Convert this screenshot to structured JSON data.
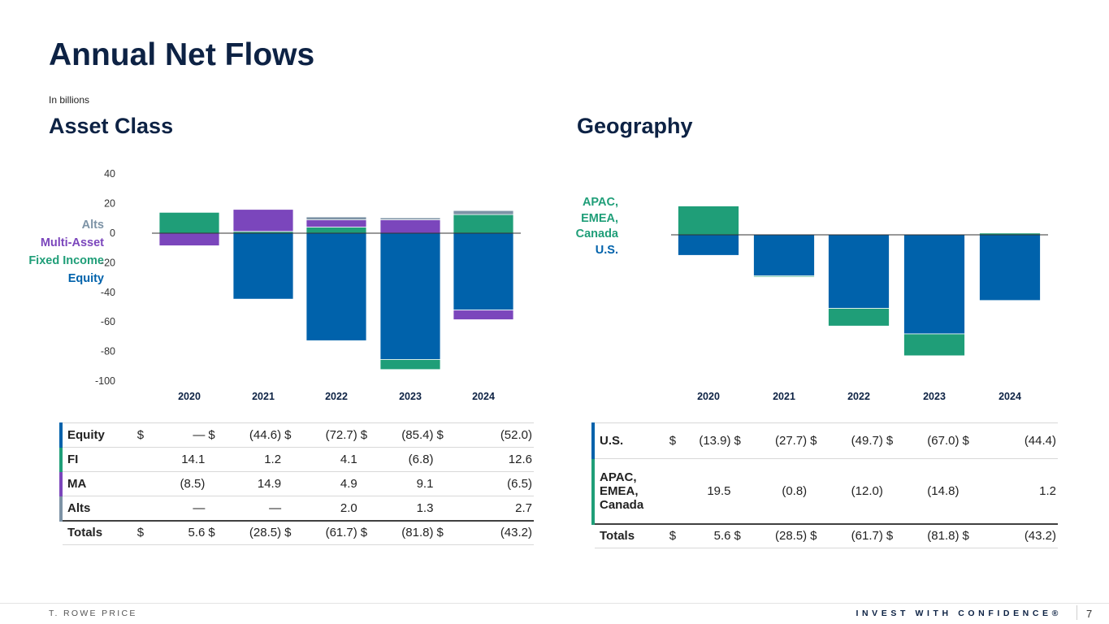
{
  "header": {
    "title": "Annual Net Flows",
    "subtitle": "In billions"
  },
  "sections": {
    "asset_class": "Asset Class",
    "geography": "Geography"
  },
  "colors": {
    "equity": "#0062ab",
    "fixed_income": "#1f9e78",
    "multi_asset": "#7b46bc",
    "alts": "#7d93a6",
    "us": "#0062ab",
    "apac": "#1f9e78",
    "navy": "#0d2244"
  },
  "legend_asset": [
    "Alts",
    "Multi-Asset",
    "Fixed Income",
    "Equity"
  ],
  "legend_geo": {
    "apac_lines": [
      "APAC,",
      "EMEA,",
      "Canada"
    ],
    "us": "U.S."
  },
  "chart_data": [
    {
      "type": "bar",
      "stacked": true,
      "title": "Asset Class",
      "categories": [
        "2020",
        "2021",
        "2022",
        "2023",
        "2024"
      ],
      "y_ticks": [
        "40",
        "20",
        "0",
        "-20",
        "-40",
        "-60",
        "-80",
        "-100"
      ],
      "ylim": [
        -100,
        40
      ],
      "series": [
        {
          "name": "Equity",
          "values": [
            0,
            -44.6,
            -72.7,
            -85.4,
            -52.0
          ]
        },
        {
          "name": "Fixed Income",
          "values": [
            14.1,
            1.2,
            4.1,
            -6.8,
            12.6
          ]
        },
        {
          "name": "Multi-Asset",
          "values": [
            -8.5,
            14.9,
            4.9,
            9.1,
            -6.5
          ]
        },
        {
          "name": "Alts",
          "values": [
            0,
            0,
            2.0,
            1.3,
            2.7
          ]
        }
      ]
    },
    {
      "type": "bar",
      "stacked": true,
      "title": "Geography",
      "categories": [
        "2020",
        "2021",
        "2022",
        "2023",
        "2024"
      ],
      "ylim": [
        -100,
        40
      ],
      "series": [
        {
          "name": "U.S.",
          "values": [
            -13.9,
            -27.7,
            -49.7,
            -67.0,
            -44.4
          ]
        },
        {
          "name": "APAC, EMEA, Canada",
          "values": [
            19.5,
            -0.8,
            -12.0,
            -14.8,
            1.2
          ]
        }
      ]
    }
  ],
  "table_asset": {
    "rows": [
      {
        "label": "Equity",
        "cells": [
          [
            "$",
            "—"
          ],
          [
            "$",
            "(44.6)"
          ],
          [
            "$",
            "(72.7)"
          ],
          [
            "$",
            "(85.4)"
          ],
          [
            "$",
            "(52.0)"
          ]
        ]
      },
      {
        "label": "FI",
        "cells": [
          [
            "",
            "14.1"
          ],
          [
            "",
            "1.2"
          ],
          [
            "",
            "4.1"
          ],
          [
            "",
            "(6.8)"
          ],
          [
            "",
            "12.6"
          ]
        ]
      },
      {
        "label": "MA",
        "cells": [
          [
            "",
            "(8.5)"
          ],
          [
            "",
            "14.9"
          ],
          [
            "",
            "4.9"
          ],
          [
            "",
            "9.1"
          ],
          [
            "",
            "(6.5)"
          ]
        ]
      },
      {
        "label": "Alts",
        "cells": [
          [
            "",
            "—"
          ],
          [
            "",
            "—"
          ],
          [
            "",
            "2.0"
          ],
          [
            "",
            "1.3"
          ],
          [
            "",
            "2.7"
          ]
        ]
      }
    ],
    "totals": {
      "label": "Totals",
      "cells": [
        [
          "$",
          "5.6"
        ],
        [
          "$",
          "(28.5)"
        ],
        [
          "$",
          "(61.7)"
        ],
        [
          "$",
          "(81.8)"
        ],
        [
          "$",
          "(43.2)"
        ]
      ]
    }
  },
  "table_geo": {
    "rows": [
      {
        "label": "U.S.",
        "cells": [
          [
            "$",
            "(13.9)"
          ],
          [
            "$",
            "(27.7)"
          ],
          [
            "$",
            "(49.7)"
          ],
          [
            "$",
            "(67.0)"
          ],
          [
            "$",
            "(44.4)"
          ]
        ]
      },
      {
        "label_lines": [
          "APAC,",
          "EMEA,",
          "Canada"
        ],
        "cells": [
          [
            "",
            "19.5"
          ],
          [
            "",
            "(0.8)"
          ],
          [
            "",
            "(12.0)"
          ],
          [
            "",
            "(14.8)"
          ],
          [
            "",
            "1.2"
          ]
        ]
      }
    ],
    "totals": {
      "label": "Totals",
      "cells": [
        [
          "$",
          "5.6"
        ],
        [
          "$",
          "(28.5)"
        ],
        [
          "$",
          "(61.7)"
        ],
        [
          "$",
          "(81.8)"
        ],
        [
          "$",
          "(43.2)"
        ]
      ]
    }
  },
  "footer": {
    "brand": "T. ROWE PRICE",
    "tagline": "INVEST WITH CONFIDENCE®",
    "page": "7"
  }
}
